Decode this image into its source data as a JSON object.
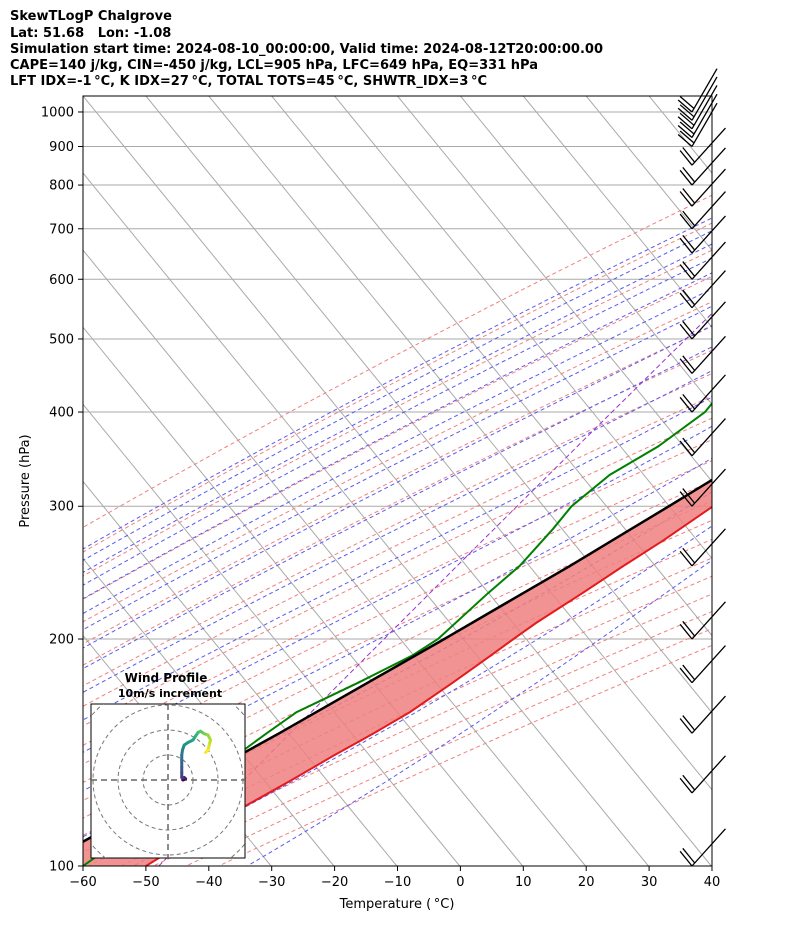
{
  "header": {
    "title": "SkewTLogP Chalgrove",
    "location": "Lat: 51.68   Lon: -1.08",
    "times": "Simulation start time: 2024-08-10_00:00:00, Valid time: 2024-08-12T20:00:00.00",
    "params": "CAPE=140 j/kg, CIN=-450 j/kg, LCL=905 hPa, LFC=649 hPa, EQ=331 hPa",
    "indices": "LFT IDX=-1 °C, K IDX=27 °C, TOTAL TOTS=45 °C, SHWTR_IDX=3 °C"
  },
  "chart_data": [
    {
      "type": "line",
      "chart_kind": "skew-T log-P",
      "xlabel": "Temperature ( °C)",
      "ylabel": "Pressure (hPa)",
      "xlim": [
        -60,
        40
      ],
      "ylim": [
        1050,
        100
      ],
      "y_scale": "log",
      "x_ticks": [
        -60,
        -50,
        -40,
        -30,
        -20,
        -10,
        0,
        10,
        20,
        30,
        40
      ],
      "y_ticks": [
        1000,
        900,
        800,
        700,
        600,
        500,
        400,
        300,
        200,
        100
      ],
      "series": [
        {
          "role": "temperature",
          "color": "#e41a1c",
          "points": [
            [
              1000,
              25
            ],
            [
              975,
              25.8
            ],
            [
              950,
              25.5
            ],
            [
              900,
              25
            ],
            [
              850,
              25
            ],
            [
              800,
              24
            ],
            [
              750,
              22
            ],
            [
              700,
              19
            ],
            [
              650,
              16
            ],
            [
              600,
              13.5
            ],
            [
              550,
              11
            ],
            [
              500,
              8.5
            ],
            [
              450,
              6
            ],
            [
              400,
              3
            ],
            [
              350,
              -1.5
            ],
            [
              300,
              -6.5
            ],
            [
              270,
              -10
            ],
            [
              250,
              -13
            ],
            [
              230,
              -16
            ],
            [
              210,
              -19.5
            ],
            [
              200,
              -21
            ],
            [
              190,
              -22.5
            ],
            [
              175,
              -25
            ],
            [
              160,
              -28
            ],
            [
              150,
              -31
            ],
            [
              140,
              -34.5
            ],
            [
              130,
              -38
            ],
            [
              120,
              -42
            ],
            [
              110,
              -46
            ],
            [
              100,
              -50
            ]
          ]
        },
        {
          "role": "dewpoint",
          "color": "#008000",
          "points": [
            [
              1000,
              19
            ],
            [
              980,
              19.5
            ],
            [
              960,
              18.5
            ],
            [
              950,
              20
            ],
            [
              930,
              21
            ],
            [
              900,
              20
            ],
            [
              850,
              11
            ],
            [
              800,
              7.5
            ],
            [
              770,
              7
            ],
            [
              740,
              10
            ],
            [
              700,
              12
            ],
            [
              650,
              10
            ],
            [
              600,
              5
            ],
            [
              550,
              -2
            ],
            [
              500,
              -10
            ],
            [
              470,
              -19
            ],
            [
              440,
              -20
            ],
            [
              400,
              -20
            ],
            [
              360,
              -23
            ],
            [
              330,
              -27
            ],
            [
              300,
              -29
            ],
            [
              280,
              -29
            ],
            [
              250,
              -29.5
            ],
            [
              230,
              -31
            ],
            [
              200,
              -33
            ],
            [
              190,
              -35
            ],
            [
              175,
              -40
            ],
            [
              160,
              -46
            ],
            [
              150,
              -48
            ],
            [
              140,
              -50
            ],
            [
              130,
              -52
            ],
            [
              120,
              -54
            ],
            [
              110,
              -57
            ],
            [
              100,
              -60
            ]
          ]
        },
        {
          "role": "parcel",
          "color": "#000000",
          "points": [
            [
              1000,
              24.5
            ],
            [
              950,
              20.5
            ],
            [
              905,
              19.5
            ],
            [
              850,
              18.5
            ],
            [
              800,
              17.5
            ],
            [
              750,
              16.3
            ],
            [
              700,
              14.9
            ],
            [
              649,
              13.3
            ],
            [
              600,
              11.3
            ],
            [
              550,
              8.8
            ],
            [
              500,
              5.8
            ],
            [
              450,
              2.3
            ],
            [
              400,
              -2
            ],
            [
              350,
              -7
            ],
            [
              331,
              -9.3
            ],
            [
              300,
              -13.5
            ],
            [
              250,
              -21.5
            ],
            [
              200,
              -32
            ],
            [
              150,
              -46
            ],
            [
              100,
              -67
            ]
          ]
        }
      ],
      "shading": [
        {
          "kind": "CAPE",
          "color": "#8fb8d8"
        },
        {
          "kind": "CIN",
          "color": "#f08080"
        }
      ],
      "wind_barbs": {
        "color": "#000000",
        "levels": [
          1000,
          975,
          950,
          925,
          900,
          850,
          800,
          750,
          700,
          650,
          600,
          550,
          500,
          450,
          400,
          350,
          300,
          250,
          200,
          175,
          150,
          125,
          100
        ]
      }
    },
    {
      "type": "scatter",
      "chart_kind": "hodograph",
      "title": "Wind Profile",
      "subtitle": "10m/s increment",
      "rings": 3,
      "colormap": "viridis",
      "points_uv": [
        [
          2,
          0
        ],
        [
          3,
          0.5
        ],
        [
          2.5,
          1
        ],
        [
          2,
          0.8
        ],
        [
          1.5,
          1
        ],
        [
          1.5,
          3
        ],
        [
          1.5,
          5
        ],
        [
          1.5,
          8
        ],
        [
          1.5,
          10
        ],
        [
          1.8,
          12
        ],
        [
          2.5,
          14
        ],
        [
          4,
          15
        ],
        [
          6,
          16
        ],
        [
          7,
          17.5
        ],
        [
          8,
          19
        ],
        [
          9,
          19.5
        ],
        [
          10.5,
          18.5
        ],
        [
          12,
          18
        ],
        [
          13,
          16
        ],
        [
          12.5,
          14
        ],
        [
          12,
          12
        ],
        [
          11,
          11
        ]
      ]
    }
  ]
}
